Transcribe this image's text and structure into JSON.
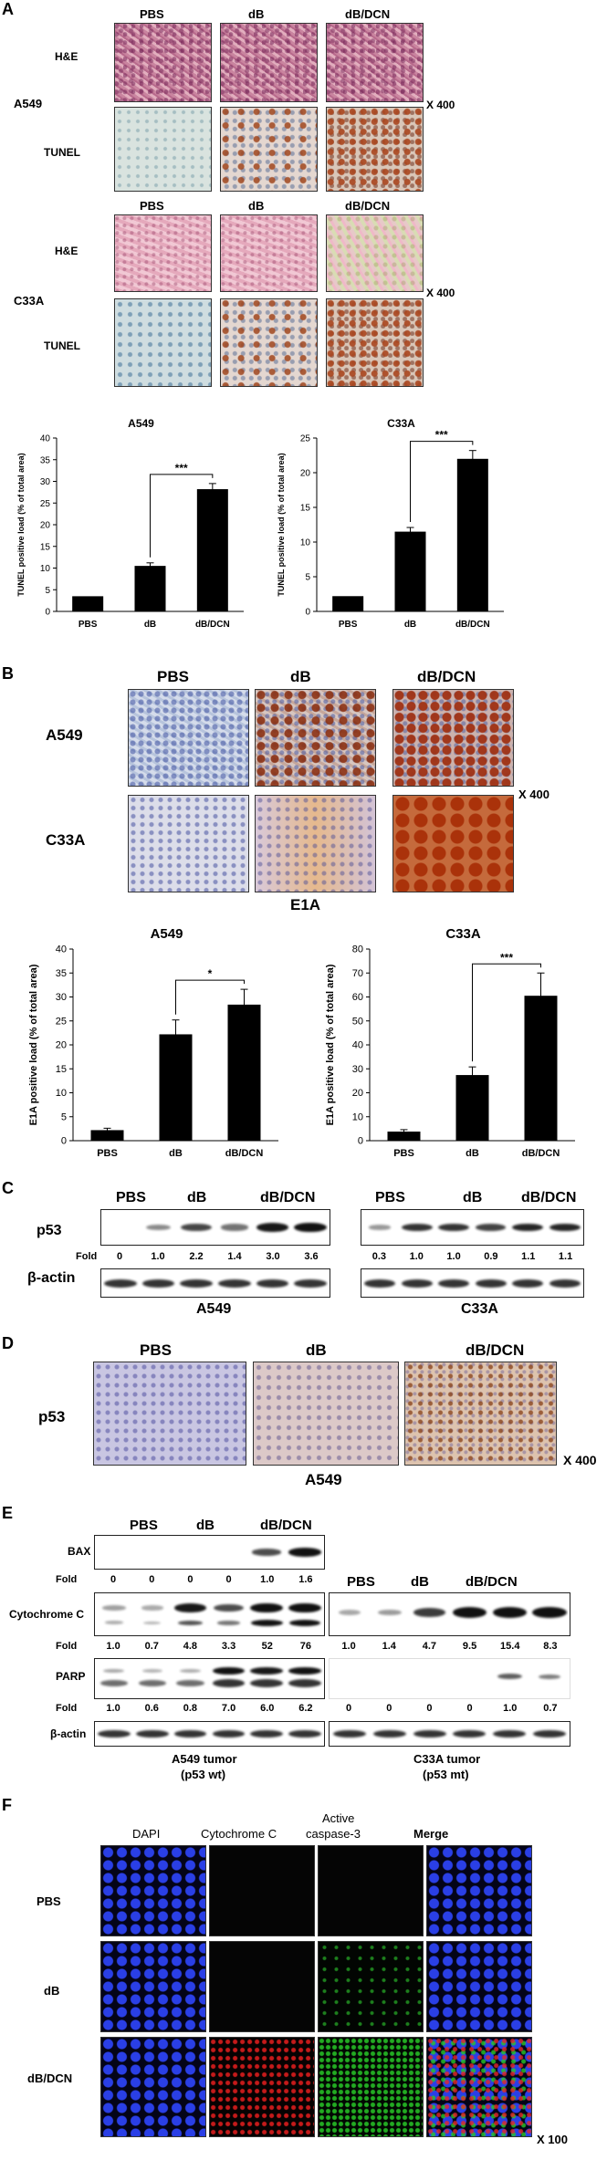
{
  "panels": {
    "A": "A",
    "B": "B",
    "C": "C",
    "D": "D",
    "E": "E",
    "F": "F"
  },
  "panelA": {
    "cols": [
      "PBS",
      "dB",
      "dB/DCN"
    ],
    "rows": [
      "H&E",
      "TUNEL"
    ],
    "lines": [
      "A549",
      "C33A"
    ],
    "magnification": "X 400"
  },
  "panelB": {
    "cols": [
      "PBS",
      "dB",
      "dB/DCN"
    ],
    "lines": [
      "A549",
      "C33A"
    ],
    "magnification": "X 400",
    "stain": "E1A"
  },
  "panelC": {
    "cols_a549": [
      "PBS",
      "dB",
      "dB/DCN"
    ],
    "cols_c33a": [
      "PBS",
      "dB",
      "dB/DCN"
    ],
    "protein": "p53",
    "loading": "β-actin",
    "fold_label": "Fold",
    "fold_a549": [
      "0",
      "1.0",
      "2.2",
      "1.4",
      "3.0",
      "3.6"
    ],
    "fold_c33a": [
      "0.3",
      "1.0",
      "1.0",
      "0.9",
      "1.1",
      "1.1"
    ],
    "line_a549": "A549",
    "line_c33a": "C33A"
  },
  "panelD": {
    "cols": [
      "PBS",
      "dB",
      "dB/DCN"
    ],
    "protein": "p53",
    "line": "A549",
    "magnification": "X 400"
  },
  "panelE": {
    "cols_a549": [
      "PBS",
      "dB",
      "dB/DCN"
    ],
    "cols_c33a": [
      "PBS",
      "dB",
      "dB/DCN"
    ],
    "proteins": {
      "bax": "BAX",
      "cytc": "Cytochrome C",
      "parp": "PARP",
      "actin": "β-actin"
    },
    "fold_label": "Fold",
    "bax_fold": [
      "0",
      "0",
      "0",
      "0",
      "1.0",
      "1.6"
    ],
    "cytc_fold_a549": [
      "1.0",
      "0.7",
      "4.8",
      "3.3",
      "52",
      "76"
    ],
    "cytc_fold_c33a": [
      "1.0",
      "1.4",
      "4.7",
      "9.5",
      "15.4",
      "8.3"
    ],
    "parp_fold_a549": [
      "1.0",
      "0.6",
      "0.8",
      "7.0",
      "6.0",
      "6.2"
    ],
    "parp_fold_c33a": [
      "0",
      "0",
      "0",
      "0",
      "1.0",
      "0.7"
    ],
    "tumor_a549": [
      "A549 tumor",
      "(p53 wt)"
    ],
    "tumor_c33a": [
      "C33A tumor",
      "(p53 mt)"
    ]
  },
  "panelF": {
    "cols": [
      "DAPI",
      "Cytochrome C",
      "Active",
      "caspase-3",
      "Merge"
    ],
    "rows": [
      "PBS",
      "dB",
      "dB/DCN"
    ],
    "magnification": "X 100"
  },
  "chart_data": [
    {
      "type": "bar",
      "title": "A549",
      "categories": [
        "PBS",
        "dB",
        "dB/DCN"
      ],
      "values": [
        3.5,
        10.5,
        28.2
      ],
      "errors": [
        0,
        0.7,
        1.3
      ],
      "ylabel": "TUNEL positive load (% of total area)",
      "ylim": [
        0,
        40
      ],
      "yticks": [
        0,
        5,
        10,
        15,
        20,
        25,
        30,
        35,
        40
      ],
      "significance": "***"
    },
    {
      "type": "bar",
      "title": "C33A",
      "categories": [
        "PBS",
        "dB",
        "dB/DCN"
      ],
      "values": [
        2.2,
        11.5,
        22
      ],
      "errors": [
        0,
        0.6,
        1.2
      ],
      "ylabel": "TUNEL positive load (% of total area)",
      "ylim": [
        0,
        25
      ],
      "yticks": [
        0,
        5,
        10,
        15,
        20,
        25
      ],
      "significance": "***"
    },
    {
      "type": "bar",
      "title": "A549",
      "categories": [
        "PBS",
        "dB",
        "dB/DCN"
      ],
      "values": [
        2.2,
        22.2,
        28.4
      ],
      "errors": [
        0.4,
        3,
        3.2
      ],
      "ylabel": "E1A  positive load (% of total area)",
      "ylim": [
        0,
        40
      ],
      "yticks": [
        0,
        5,
        10,
        15,
        20,
        25,
        30,
        35,
        40
      ],
      "significance": "*"
    },
    {
      "type": "bar",
      "title": "C33A",
      "categories": [
        "PBS",
        "dB",
        "dB/DCN"
      ],
      "values": [
        3.8,
        27.4,
        60.5
      ],
      "errors": [
        0.8,
        3.4,
        9.5
      ],
      "ylabel": "E1A  positive load (% of total area)",
      "ylim": [
        0,
        80
      ],
      "yticks": [
        0,
        10,
        20,
        30,
        40,
        50,
        60,
        70,
        80
      ],
      "significance": "***"
    }
  ]
}
